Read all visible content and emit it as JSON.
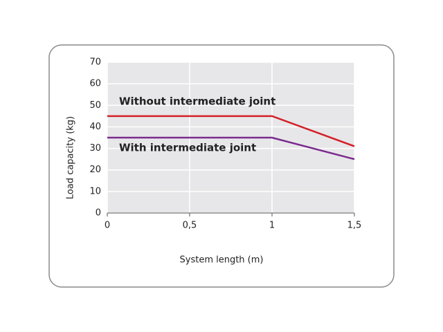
{
  "chart_data": {
    "type": "line",
    "x_label": "System length (m)",
    "y_label": "Load capacity (kg)",
    "x": [
      0,
      1,
      1.5
    ],
    "series": [
      {
        "name": "Without intermediate joint",
        "color": "#d42027",
        "values": [
          45,
          45,
          31
        ]
      },
      {
        "name": "With intermediate joint",
        "color": "#7b2a8e",
        "values": [
          35,
          35,
          25
        ]
      }
    ],
    "xlim": [
      0,
      1.5
    ],
    "xticks": [
      0,
      {
        "value": 0.5,
        "label": "0,5"
      },
      1,
      {
        "value": 1.5,
        "label": "1,5"
      }
    ],
    "ylim": [
      0,
      70
    ],
    "yticks": [
      0,
      10,
      20,
      30,
      40,
      50,
      60,
      70
    ],
    "grid": true
  }
}
